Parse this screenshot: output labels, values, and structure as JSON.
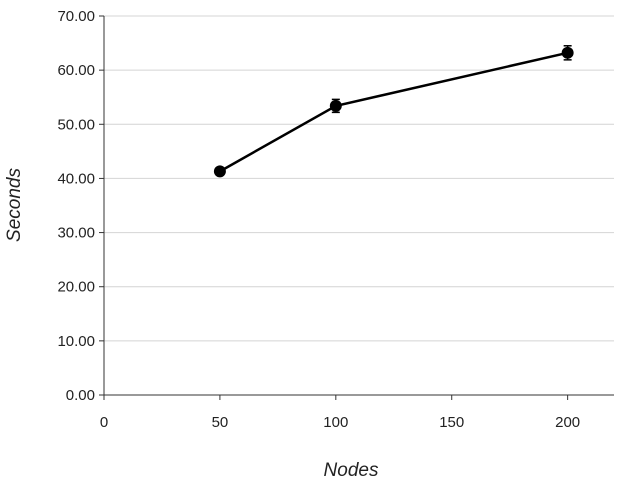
{
  "chart_data": {
    "type": "line",
    "title": "",
    "xlabel": "Nodes",
    "ylabel": "Seconds",
    "xlim": [
      0,
      220
    ],
    "ylim": [
      0,
      70
    ],
    "x_ticks": [
      0,
      50,
      100,
      150,
      200
    ],
    "x_tick_labels": [
      "0",
      "50",
      "100",
      "150",
      "200"
    ],
    "y_ticks": [
      0,
      10,
      20,
      30,
      40,
      50,
      60,
      70
    ],
    "y_tick_labels": [
      "0.00",
      "10.00",
      "20.00",
      "30.00",
      "40.00",
      "50.00",
      "60.00",
      "70.00"
    ],
    "grid": "horizontal",
    "legend": "none",
    "series": [
      {
        "x": [
          50,
          100,
          200
        ],
        "y": [
          41.3,
          53.4,
          63.2
        ],
        "error": [
          0.6,
          1.2,
          1.3
        ],
        "color": "#000000",
        "marker": "circle"
      }
    ]
  }
}
